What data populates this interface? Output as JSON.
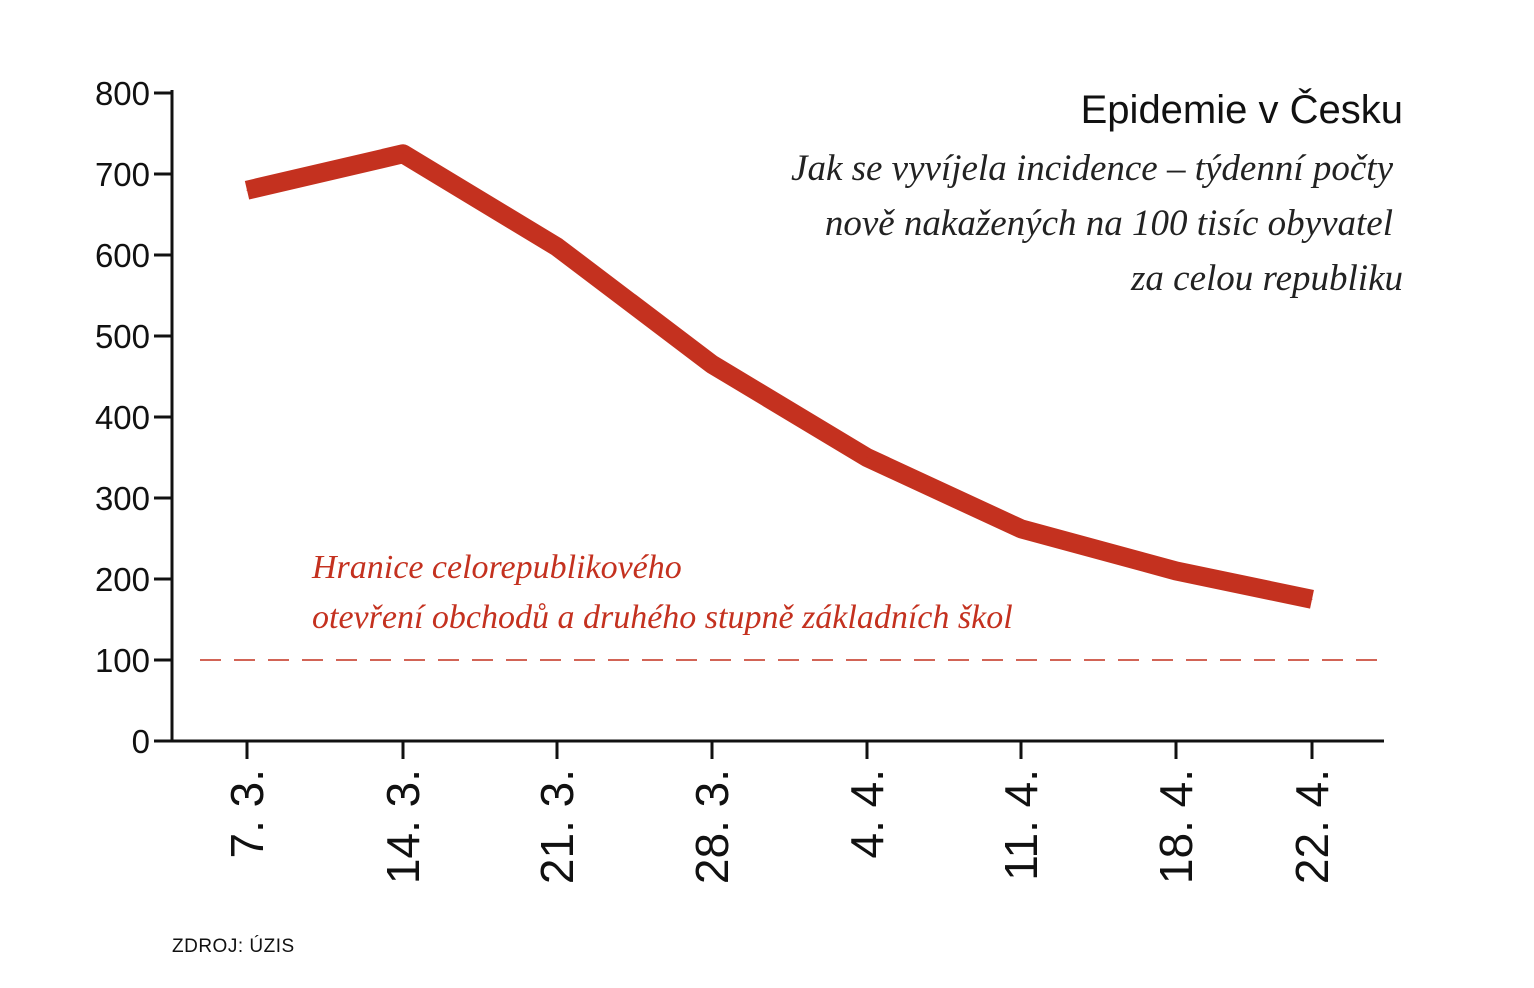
{
  "chart_data": {
    "type": "line",
    "title": "Epidemie v Česku",
    "subtitle_lines": [
      "Jak se vyvíjela incidence – týdenní počty",
      "nově nakažených na 100 tisíc obyvatel",
      "za celou republiku"
    ],
    "categories": [
      "7. 3.",
      "14. 3.",
      "21. 3.",
      "28. 3.",
      "4. 4.",
      "11. 4.",
      "18. 4.",
      "22. 4."
    ],
    "series": [
      {
        "values": [
          680,
          725,
          610,
          465,
          350,
          262,
          210,
          175
        ]
      }
    ],
    "y_ticks": [
      0,
      100,
      200,
      300,
      400,
      500,
      600,
      700,
      800
    ],
    "ylim": [
      0,
      800
    ],
    "xlabel": "",
    "ylabel": "",
    "grid": false,
    "reference_line": {
      "value": 100,
      "label_lines": [
        "Hranice celorepublikového",
        "otevření obchodů a druhého stupně základních škol"
      ]
    },
    "colors": {
      "line": "#c4311f",
      "reference": "#c4311f",
      "axis": "#111111"
    },
    "source": "ZDROJ: ÚZIS"
  }
}
